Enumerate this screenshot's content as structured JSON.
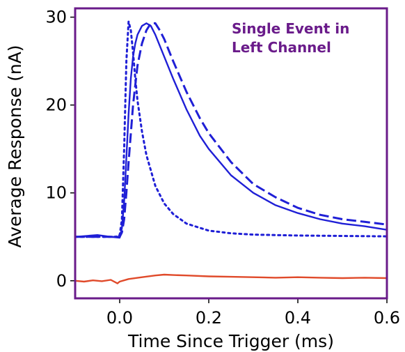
{
  "chart_data": {
    "type": "line",
    "title": "",
    "xlabel": "Time Since Trigger (ms)",
    "ylabel": "Average Response (nA)",
    "xlim": [
      -0.1,
      0.6
    ],
    "ylim": [
      -2,
      31
    ],
    "xticks": [
      0.0,
      0.2,
      0.4,
      0.6
    ],
    "xtick_labels": [
      "0.0",
      "0.2",
      "0.4",
      "0.6"
    ],
    "yticks": [
      0,
      10,
      20,
      30
    ],
    "ytick_labels": [
      "0",
      "10",
      "20",
      "30"
    ],
    "frame_color": "#6a1b8a",
    "grid": false,
    "legend": "none",
    "annotation": {
      "lines": [
        "Single Event in",
        "Left Channel"
      ],
      "color": "#6a1b8a",
      "placement": "top-right"
    },
    "series": [
      {
        "style": "solid",
        "color": "#1f1fd6",
        "x": [
          -0.1,
          -0.05,
          -0.02,
          0.0,
          0.005,
          0.01,
          0.015,
          0.02,
          0.025,
          0.03,
          0.035,
          0.04,
          0.05,
          0.06,
          0.07,
          0.08,
          0.1,
          0.12,
          0.15,
          0.18,
          0.2,
          0.25,
          0.3,
          0.35,
          0.4,
          0.45,
          0.5,
          0.55,
          0.6
        ],
        "y": [
          5.0,
          5.2,
          5.0,
          4.9,
          6.0,
          9.0,
          14.0,
          19.0,
          23.0,
          25.5,
          27.0,
          28.0,
          29.0,
          29.3,
          29.0,
          28.0,
          25.5,
          23.0,
          19.5,
          16.5,
          15.0,
          12.0,
          10.0,
          8.6,
          7.7,
          7.0,
          6.5,
          6.2,
          5.8
        ]
      },
      {
        "style": "dashed",
        "color": "#1f1fd6",
        "x": [
          -0.1,
          -0.05,
          -0.02,
          0.0,
          0.005,
          0.01,
          0.015,
          0.02,
          0.03,
          0.04,
          0.05,
          0.06,
          0.07,
          0.08,
          0.09,
          0.1,
          0.12,
          0.15,
          0.18,
          0.2,
          0.25,
          0.3,
          0.35,
          0.4,
          0.45,
          0.5,
          0.55,
          0.6
        ],
        "y": [
          5.0,
          5.0,
          5.0,
          5.0,
          5.5,
          7.0,
          10.0,
          13.5,
          20.0,
          24.5,
          27.0,
          28.5,
          29.3,
          29.3,
          28.5,
          27.5,
          25.0,
          21.5,
          18.5,
          16.8,
          13.5,
          11.0,
          9.5,
          8.3,
          7.5,
          7.0,
          6.7,
          6.4
        ]
      },
      {
        "style": "dotted",
        "color": "#1f1fd6",
        "x": [
          -0.1,
          -0.05,
          -0.01,
          0.0,
          0.005,
          0.01,
          0.015,
          0.02,
          0.025,
          0.03,
          0.035,
          0.04,
          0.05,
          0.06,
          0.08,
          0.1,
          0.12,
          0.15,
          0.2,
          0.25,
          0.3,
          0.4,
          0.5,
          0.6
        ],
        "y": [
          5.0,
          5.0,
          5.0,
          5.2,
          7.0,
          15.0,
          25.0,
          29.5,
          28.5,
          26.0,
          23.0,
          20.5,
          17.0,
          14.3,
          10.8,
          8.8,
          7.6,
          6.5,
          5.7,
          5.4,
          5.25,
          5.15,
          5.1,
          5.05
        ]
      },
      {
        "style": "solid",
        "color": "#e04a2a",
        "x": [
          -0.1,
          -0.08,
          -0.06,
          -0.04,
          -0.02,
          -0.005,
          0.0,
          0.02,
          0.05,
          0.08,
          0.1,
          0.12,
          0.15,
          0.2,
          0.25,
          0.3,
          0.35,
          0.4,
          0.45,
          0.5,
          0.55,
          0.6
        ],
        "y": [
          0.0,
          -0.1,
          0.05,
          -0.05,
          0.1,
          -0.3,
          -0.1,
          0.2,
          0.4,
          0.6,
          0.7,
          0.65,
          0.6,
          0.5,
          0.45,
          0.4,
          0.35,
          0.4,
          0.35,
          0.3,
          0.35,
          0.3
        ]
      }
    ]
  }
}
